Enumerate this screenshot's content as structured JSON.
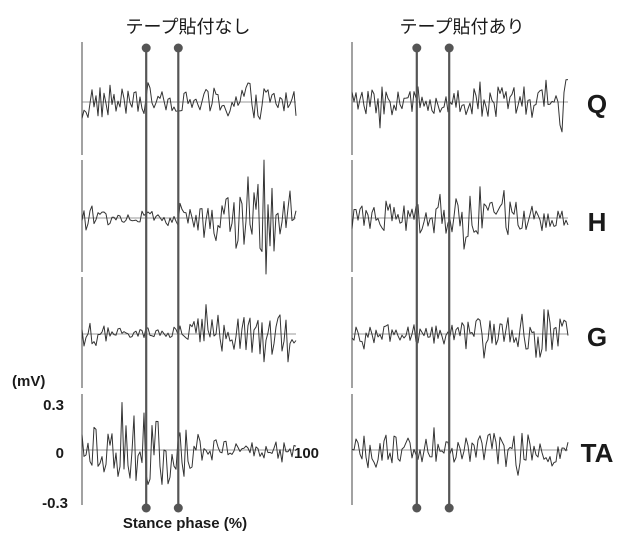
{
  "chart_data": {
    "type": "line",
    "panels": [
      {
        "title": "テープ貼付なし",
        "phase_markers": [
          30,
          45
        ]
      },
      {
        "title": "テープ貼付あり",
        "phase_markers": [
          30,
          45
        ]
      }
    ],
    "rows": [
      "Q",
      "H",
      "G",
      "TA"
    ],
    "y_unit": "(mV)",
    "y_ticks": [
      "0.3",
      "0",
      "-0.3"
    ],
    "ylim": [
      -0.3,
      0.3
    ],
    "x_end_label": "100",
    "xlabel": "Stance phase (%)",
    "xlim": [
      0,
      100
    ],
    "grid": false,
    "colors": {
      "trace": "#333333",
      "marker": "#555555",
      "axis": "#444444",
      "baseline": "#777777"
    },
    "series": [
      {
        "panel": 0,
        "row": "Q",
        "amplitude": [
          0.18,
          0.1,
          0.15,
          0.05,
          0.12,
          0.06,
          0.06,
          0.08,
          0.1,
          0.12,
          0.14,
          0.12,
          0.1,
          0.1
        ]
      },
      {
        "panel": 1,
        "row": "Q",
        "amplitude": [
          0.1,
          0.08,
          0.1,
          0.08,
          0.08,
          0.08,
          0.09,
          0.1,
          0.1,
          0.1,
          0.1,
          0.1,
          0.16,
          0.22
        ]
      },
      {
        "panel": 0,
        "row": "H",
        "amplitude": [
          0.14,
          0.06,
          0.04,
          0.04,
          0.05,
          0.05,
          0.1,
          0.12,
          0.16,
          0.2,
          0.22,
          0.24,
          0.22,
          0.12
        ]
      },
      {
        "panel": 1,
        "row": "H",
        "amplitude": [
          0.08,
          0.08,
          0.08,
          0.08,
          0.1,
          0.1,
          0.12,
          0.14,
          0.14,
          0.12,
          0.1,
          0.1,
          0.06,
          0.06
        ]
      },
      {
        "panel": 0,
        "row": "G",
        "amplitude": [
          0.08,
          0.06,
          0.04,
          0.04,
          0.04,
          0.05,
          0.06,
          0.1,
          0.12,
          0.12,
          0.12,
          0.18,
          0.16,
          0.06
        ]
      },
      {
        "panel": 1,
        "row": "G",
        "amplitude": [
          0.06,
          0.06,
          0.06,
          0.06,
          0.06,
          0.06,
          0.08,
          0.1,
          0.1,
          0.1,
          0.12,
          0.16,
          0.18,
          0.08
        ]
      },
      {
        "panel": 0,
        "row": "TA",
        "amplitude": [
          0.12,
          0.16,
          0.2,
          0.24,
          0.26,
          0.24,
          0.14,
          0.1,
          0.08,
          0.06,
          0.06,
          0.06,
          0.06,
          0.06
        ]
      },
      {
        "panel": 1,
        "row": "TA",
        "amplitude": [
          0.08,
          0.12,
          0.1,
          0.08,
          0.08,
          0.08,
          0.08,
          0.08,
          0.1,
          0.12,
          0.1,
          0.1,
          0.12,
          0.1
        ]
      }
    ]
  }
}
